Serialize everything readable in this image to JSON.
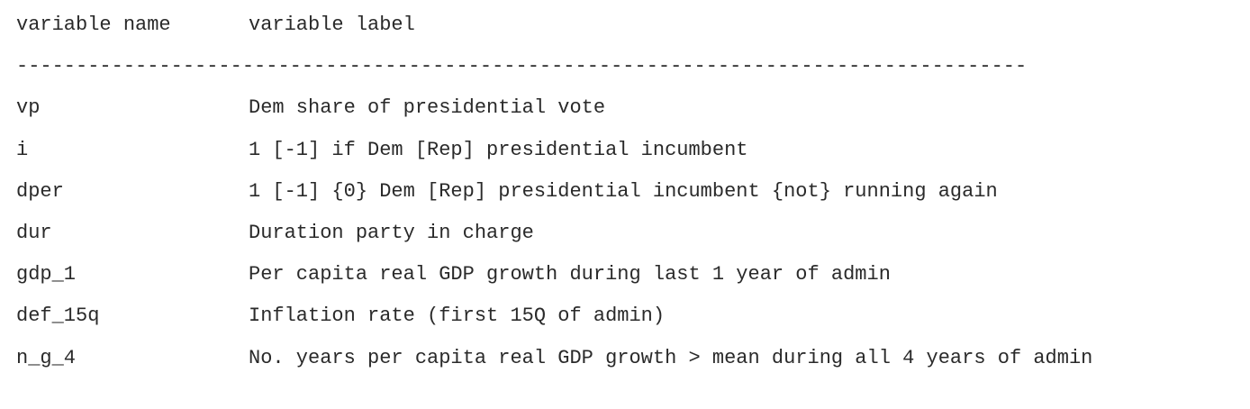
{
  "header": {
    "name_col": "variable name",
    "label_col": "variable label"
  },
  "divider": "-------------------------------------------------------------------------------------",
  "rows": [
    {
      "name": "vp",
      "label": "Dem share of presidential vote"
    },
    {
      "name": "i",
      "label": "1 [-1] if Dem [Rep] presidential incumbent"
    },
    {
      "name": "dper",
      "label": "1 [-1] {0} Dem [Rep] presidential incumbent {not} running again"
    },
    {
      "name": "dur",
      "label": "Duration party in charge"
    },
    {
      "name": "gdp_1",
      "label": "Per capita real GDP growth during last 1 year of admin"
    },
    {
      "name": "def_15q",
      "label": "Inflation rate (first 15Q of admin)"
    },
    {
      "name": "n_g_4",
      "label": "No. years per capita real GDP growth > mean during all 4 years of admin"
    }
  ]
}
